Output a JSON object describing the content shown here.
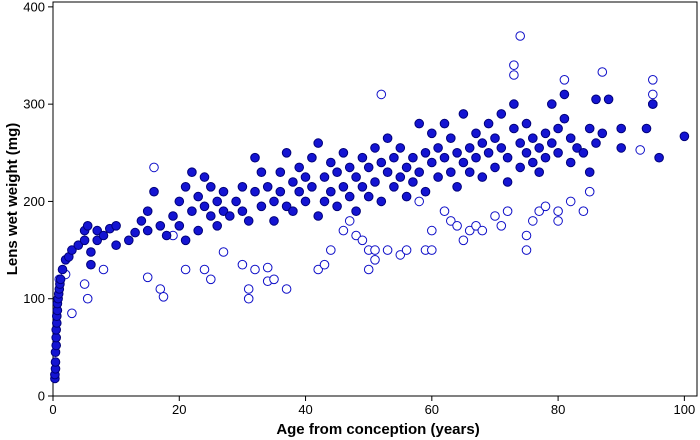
{
  "chart_data": {
    "type": "scatter",
    "xlabel": "Age from conception (years)",
    "ylabel": "Lens wet weight (mg)",
    "xlim": [
      0,
      102
    ],
    "ylim": [
      0,
      405
    ],
    "xticks": [
      0,
      20,
      40,
      60,
      80,
      100
    ],
    "yticks": [
      0,
      100,
      200,
      300,
      400
    ],
    "grid": false,
    "colors": {
      "marker": "#1010c8",
      "filled": "#1414d2",
      "edge": "#00007a"
    },
    "series": [
      {
        "marker": "filled-circle",
        "points": [
          [
            0.3,
            18
          ],
          [
            0.3,
            22
          ],
          [
            0.4,
            28
          ],
          [
            0.4,
            35
          ],
          [
            0.4,
            45
          ],
          [
            0.5,
            52
          ],
          [
            0.5,
            60
          ],
          [
            0.5,
            68
          ],
          [
            0.6,
            75
          ],
          [
            0.6,
            82
          ],
          [
            0.7,
            88
          ],
          [
            0.7,
            95
          ],
          [
            0.8,
            100
          ],
          [
            0.9,
            105
          ],
          [
            1.0,
            110
          ],
          [
            1.1,
            115
          ],
          [
            1.2,
            120
          ],
          [
            1.5,
            130
          ],
          [
            2,
            140
          ],
          [
            2.5,
            143
          ],
          [
            3,
            150
          ],
          [
            4,
            155
          ],
          [
            5,
            160
          ],
          [
            5,
            170
          ],
          [
            5.5,
            175
          ],
          [
            6,
            148
          ],
          [
            6,
            135
          ],
          [
            7,
            160
          ],
          [
            7,
            170
          ],
          [
            8,
            165
          ],
          [
            9,
            172
          ],
          [
            10,
            155
          ],
          [
            10,
            175
          ],
          [
            12,
            160
          ],
          [
            13,
            168
          ],
          [
            14,
            180
          ],
          [
            15,
            170
          ],
          [
            15,
            190
          ],
          [
            16,
            210
          ],
          [
            17,
            175
          ],
          [
            18,
            165
          ],
          [
            19,
            185
          ],
          [
            20,
            175
          ],
          [
            20,
            200
          ],
          [
            21,
            160
          ],
          [
            21,
            215
          ],
          [
            22,
            190
          ],
          [
            22,
            230
          ],
          [
            23,
            170
          ],
          [
            23,
            205
          ],
          [
            24,
            195
          ],
          [
            24,
            225
          ],
          [
            25,
            185
          ],
          [
            25,
            215
          ],
          [
            26,
            200
          ],
          [
            26,
            175
          ],
          [
            27,
            190
          ],
          [
            27,
            210
          ],
          [
            28,
            185
          ],
          [
            29,
            200
          ],
          [
            30,
            215
          ],
          [
            30,
            190
          ],
          [
            31,
            180
          ],
          [
            32,
            210
          ],
          [
            32,
            245
          ],
          [
            33,
            195
          ],
          [
            33,
            230
          ],
          [
            34,
            215
          ],
          [
            35,
            200
          ],
          [
            35,
            180
          ],
          [
            36,
            230
          ],
          [
            36,
            210
          ],
          [
            37,
            195
          ],
          [
            37,
            250
          ],
          [
            38,
            220
          ],
          [
            38,
            190
          ],
          [
            39,
            210
          ],
          [
            39,
            235
          ],
          [
            40,
            200
          ],
          [
            40,
            225
          ],
          [
            41,
            215
          ],
          [
            41,
            245
          ],
          [
            42,
            185
          ],
          [
            42,
            260
          ],
          [
            43,
            225
          ],
          [
            43,
            200
          ],
          [
            44,
            240
          ],
          [
            44,
            210
          ],
          [
            45,
            195
          ],
          [
            45,
            230
          ],
          [
            46,
            250
          ],
          [
            46,
            215
          ],
          [
            47,
            205
          ],
          [
            47,
            235
          ],
          [
            48,
            225
          ],
          [
            48,
            190
          ],
          [
            49,
            215
          ],
          [
            49,
            245
          ],
          [
            50,
            235
          ],
          [
            50,
            205
          ],
          [
            51,
            220
          ],
          [
            51,
            255
          ],
          [
            52,
            200
          ],
          [
            52,
            240
          ],
          [
            53,
            230
          ],
          [
            53,
            265
          ],
          [
            54,
            215
          ],
          [
            54,
            245
          ],
          [
            55,
            225
          ],
          [
            55,
            255
          ],
          [
            56,
            205
          ],
          [
            56,
            235
          ],
          [
            57,
            245
          ],
          [
            57,
            220
          ],
          [
            58,
            280
          ],
          [
            58,
            230
          ],
          [
            59,
            210
          ],
          [
            59,
            250
          ],
          [
            60,
            240
          ],
          [
            60,
            270
          ],
          [
            61,
            225
          ],
          [
            61,
            255
          ],
          [
            62,
            245
          ],
          [
            62,
            280
          ],
          [
            63,
            230
          ],
          [
            63,
            265
          ],
          [
            64,
            250
          ],
          [
            64,
            215
          ],
          [
            65,
            240
          ],
          [
            65,
            290
          ],
          [
            66,
            255
          ],
          [
            66,
            230
          ],
          [
            67,
            270
          ],
          [
            67,
            245
          ],
          [
            68,
            225
          ],
          [
            68,
            260
          ],
          [
            69,
            250
          ],
          [
            69,
            280
          ],
          [
            70,
            235
          ],
          [
            70,
            265
          ],
          [
            71,
            255
          ],
          [
            71,
            290
          ],
          [
            72,
            245
          ],
          [
            72,
            220
          ],
          [
            73,
            275
          ],
          [
            73,
            300
          ],
          [
            74,
            260
          ],
          [
            74,
            235
          ],
          [
            75,
            250
          ],
          [
            75,
            280
          ],
          [
            76,
            265
          ],
          [
            76,
            240
          ],
          [
            77,
            230
          ],
          [
            77,
            255
          ],
          [
            78,
            270
          ],
          [
            78,
            245
          ],
          [
            79,
            300
          ],
          [
            79,
            260
          ],
          [
            80,
            275
          ],
          [
            80,
            250
          ],
          [
            81,
            310
          ],
          [
            81,
            285
          ],
          [
            82,
            265
          ],
          [
            82,
            240
          ],
          [
            83,
            255
          ],
          [
            84,
            250
          ],
          [
            85,
            275
          ],
          [
            85,
            230
          ],
          [
            86,
            305
          ],
          [
            86,
            260
          ],
          [
            87,
            270
          ],
          [
            88,
            305
          ],
          [
            90,
            275
          ],
          [
            90,
            255
          ],
          [
            94,
            275
          ],
          [
            95,
            300
          ],
          [
            96,
            245
          ],
          [
            100,
            267
          ]
        ]
      },
      {
        "marker": "open-circle",
        "points": [
          [
            1,
            120
          ],
          [
            2,
            125
          ],
          [
            3,
            85
          ],
          [
            5,
            115
          ],
          [
            5.5,
            100
          ],
          [
            8,
            130
          ],
          [
            15,
            122
          ],
          [
            16,
            235
          ],
          [
            17,
            110
          ],
          [
            17.5,
            102
          ],
          [
            19,
            165
          ],
          [
            21,
            130
          ],
          [
            24,
            130
          ],
          [
            25,
            120
          ],
          [
            27,
            148
          ],
          [
            30,
            135
          ],
          [
            31,
            110
          ],
          [
            31,
            100
          ],
          [
            32,
            130
          ],
          [
            34,
            132
          ],
          [
            34,
            118
          ],
          [
            35,
            120
          ],
          [
            37,
            110
          ],
          [
            42,
            130
          ],
          [
            43,
            135
          ],
          [
            44,
            150
          ],
          [
            46,
            170
          ],
          [
            47,
            180
          ],
          [
            48,
            165
          ],
          [
            49,
            160
          ],
          [
            50,
            150
          ],
          [
            50,
            130
          ],
          [
            51,
            140
          ],
          [
            51,
            150
          ],
          [
            52,
            310
          ],
          [
            53,
            150
          ],
          [
            55,
            145
          ],
          [
            56,
            150
          ],
          [
            58,
            200
          ],
          [
            59,
            150
          ],
          [
            60,
            170
          ],
          [
            60,
            150
          ],
          [
            62,
            190
          ],
          [
            63,
            180
          ],
          [
            64,
            175
          ],
          [
            65,
            160
          ],
          [
            66,
            170
          ],
          [
            67,
            175
          ],
          [
            68,
            170
          ],
          [
            70,
            185
          ],
          [
            71,
            175
          ],
          [
            72,
            190
          ],
          [
            73,
            340
          ],
          [
            73,
            330
          ],
          [
            74,
            370
          ],
          [
            75,
            150
          ],
          [
            75,
            165
          ],
          [
            76,
            180
          ],
          [
            77,
            190
          ],
          [
            78,
            195
          ],
          [
            80,
            180
          ],
          [
            80,
            190
          ],
          [
            81,
            325
          ],
          [
            82,
            200
          ],
          [
            84,
            190
          ],
          [
            85,
            210
          ],
          [
            87,
            333
          ],
          [
            93,
            253
          ],
          [
            95,
            325
          ],
          [
            95,
            310
          ],
          [
            95,
            300
          ]
        ]
      }
    ]
  }
}
